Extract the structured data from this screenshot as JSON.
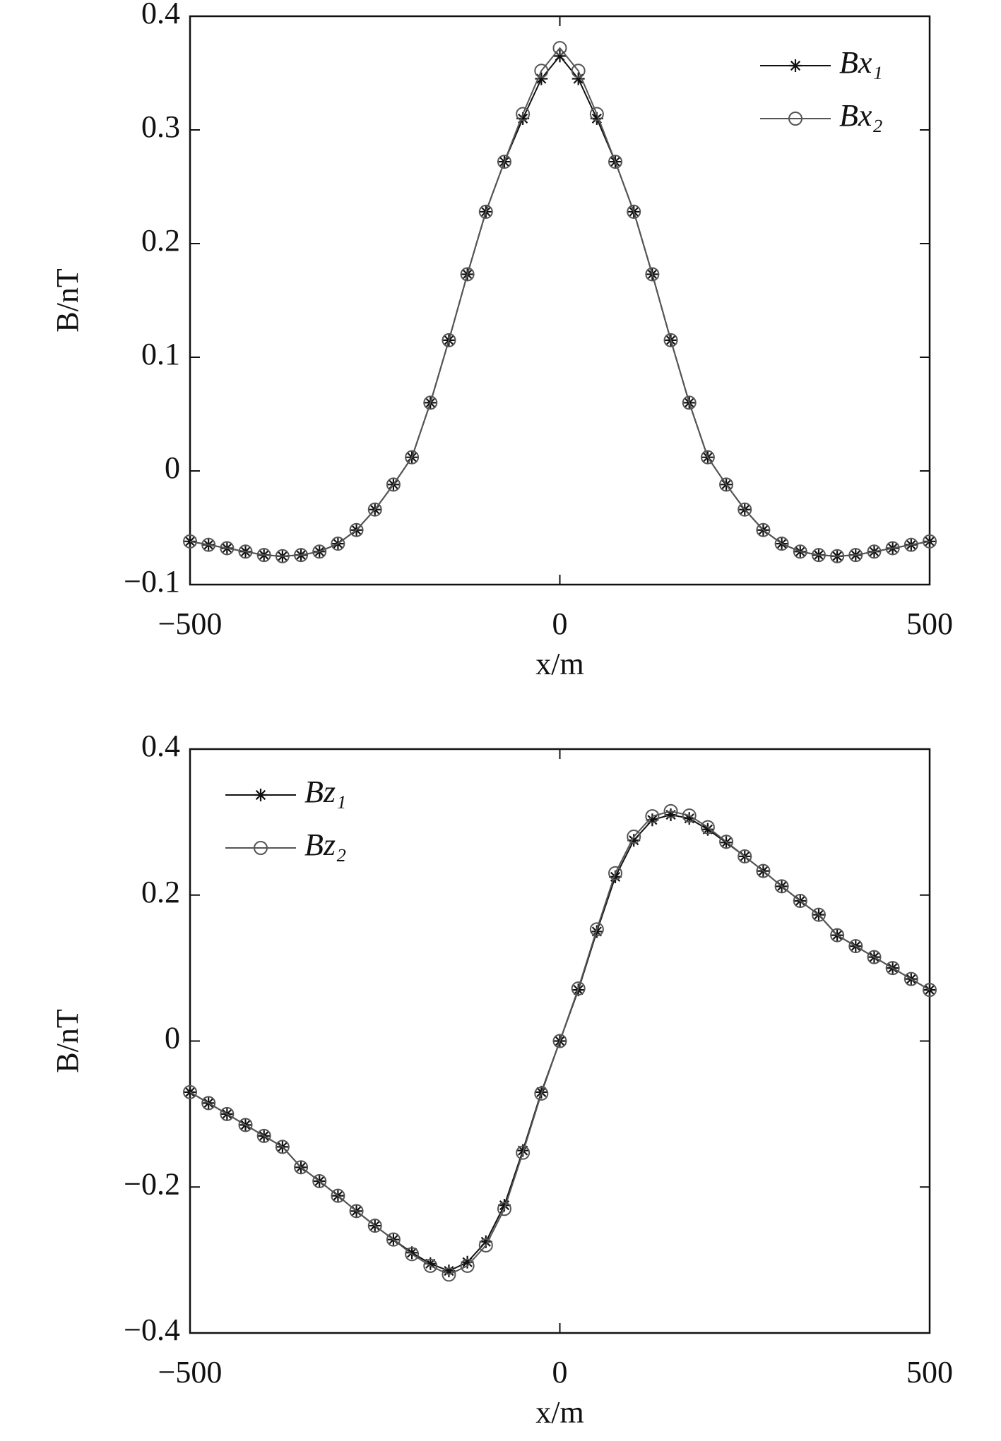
{
  "chart_data": [
    {
      "type": "line",
      "xlabel": "x/m",
      "ylabel": "B/nT",
      "x": [
        -500,
        -475,
        -450,
        -425,
        -400,
        -375,
        -350,
        -325,
        -300,
        -275,
        -250,
        -225,
        -200,
        -175,
        -150,
        -125,
        -100,
        -75,
        -50,
        -25,
        0,
        25,
        50,
        75,
        100,
        125,
        150,
        175,
        200,
        225,
        250,
        275,
        300,
        325,
        350,
        375,
        400,
        425,
        450,
        475,
        500
      ],
      "series": [
        {
          "name": "Bx₁",
          "color": "#111111",
          "marker": "asterisk",
          "values": [
            -0.062,
            -0.065,
            -0.068,
            -0.071,
            -0.074,
            -0.075,
            -0.074,
            -0.071,
            -0.064,
            -0.052,
            -0.034,
            -0.012,
            0.012,
            0.06,
            0.115,
            0.173,
            0.228,
            0.272,
            0.31,
            0.345,
            0.365,
            0.345,
            0.31,
            0.272,
            0.228,
            0.173,
            0.115,
            0.06,
            0.012,
            -0.012,
            -0.034,
            -0.052,
            -0.064,
            -0.071,
            -0.074,
            -0.075,
            -0.074,
            -0.071,
            -0.068,
            -0.065,
            -0.062
          ]
        },
        {
          "name": "Bx₂",
          "color": "#555555",
          "marker": "circle",
          "values": [
            -0.062,
            -0.065,
            -0.068,
            -0.071,
            -0.074,
            -0.075,
            -0.074,
            -0.071,
            -0.064,
            -0.052,
            -0.034,
            -0.012,
            0.012,
            0.06,
            0.115,
            0.173,
            0.228,
            0.272,
            0.314,
            0.352,
            0.372,
            0.352,
            0.314,
            0.272,
            0.228,
            0.173,
            0.115,
            0.06,
            0.012,
            -0.012,
            -0.034,
            -0.052,
            -0.064,
            -0.071,
            -0.074,
            -0.075,
            -0.074,
            -0.071,
            -0.068,
            -0.065,
            -0.062
          ]
        }
      ],
      "xlim": [
        -500,
        500
      ],
      "xticks": [
        {
          "value": -500,
          "label": "−500"
        },
        0,
        500
      ],
      "ylim": [
        -0.1,
        0.4
      ],
      "yticks": [
        {
          "value": -0.1,
          "label": "−0.1"
        },
        0,
        0.1,
        0.2,
        0.3,
        0.4
      ],
      "legend": "upper right"
    },
    {
      "type": "line",
      "xlabel": "x/m",
      "ylabel": "B/nT",
      "x": [
        -500,
        -475,
        -450,
        -425,
        -400,
        -375,
        -350,
        -325,
        -300,
        -275,
        -250,
        -225,
        -200,
        -175,
        -150,
        -125,
        -100,
        -75,
        -50,
        -25,
        0,
        25,
        50,
        75,
        100,
        125,
        150,
        175,
        200,
        225,
        250,
        275,
        300,
        325,
        350,
        375,
        400,
        425,
        450,
        475,
        500
      ],
      "series": [
        {
          "name": "Bz₁",
          "color": "#111111",
          "marker": "asterisk",
          "values": [
            -0.07,
            -0.085,
            -0.1,
            -0.115,
            -0.13,
            -0.145,
            -0.173,
            -0.192,
            -0.212,
            -0.233,
            -0.253,
            -0.272,
            -0.29,
            -0.305,
            -0.315,
            -0.303,
            -0.275,
            -0.225,
            -0.15,
            -0.07,
            0,
            0.07,
            0.15,
            0.225,
            0.275,
            0.303,
            0.31,
            0.305,
            0.29,
            0.272,
            0.253,
            0.233,
            0.212,
            0.192,
            0.173,
            0.145,
            0.13,
            0.115,
            0.1,
            0.085,
            0.07
          ]
        },
        {
          "name": "Bz₂",
          "color": "#555555",
          "marker": "circle",
          "values": [
            -0.07,
            -0.085,
            -0.1,
            -0.115,
            -0.13,
            -0.145,
            -0.173,
            -0.192,
            -0.212,
            -0.233,
            -0.253,
            -0.272,
            -0.292,
            -0.308,
            -0.32,
            -0.308,
            -0.28,
            -0.23,
            -0.153,
            -0.072,
            0,
            0.072,
            0.153,
            0.23,
            0.28,
            0.308,
            0.315,
            0.309,
            0.293,
            0.273,
            0.253,
            0.233,
            0.212,
            0.192,
            0.173,
            0.145,
            0.13,
            0.115,
            0.1,
            0.085,
            0.07
          ]
        }
      ],
      "xlim": [
        -500,
        500
      ],
      "xticks": [
        {
          "value": -500,
          "label": "−500"
        },
        0,
        500
      ],
      "ylim": [
        -0.4,
        0.4
      ],
      "yticks": [
        {
          "value": -0.4,
          "label": "−0.4"
        },
        {
          "value": -0.2,
          "label": "−0.2"
        },
        0,
        0.2,
        0.4
      ],
      "legend": "upper left"
    }
  ]
}
